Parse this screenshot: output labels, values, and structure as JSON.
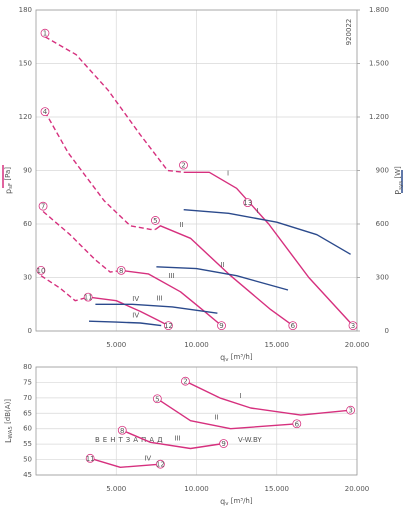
{
  "chart_data": [
    {
      "type": "line",
      "code": "920022",
      "xlabel": {
        "symbol": "q",
        "sub": "v",
        "unit": " [m³/h]"
      },
      "ylabel": {
        "symbol": "p",
        "sub": "sF",
        "unit": " [Pa]"
      },
      "y2label": {
        "symbol": "P",
        "sub": "sys",
        "unit": " [W]"
      },
      "xlim": [
        0,
        20000
      ],
      "xticks": [
        {
          "value": 5000,
          "label": "5.000"
        },
        {
          "value": 10000,
          "label": "10.000"
        },
        {
          "value": 15000,
          "label": "15.000"
        },
        {
          "value": 20000,
          "label": "20.000"
        }
      ],
      "ylim": [
        0,
        180
      ],
      "yticks": [
        0,
        30,
        60,
        90,
        120,
        150,
        180
      ],
      "y2lim": [
        0,
        1800
      ],
      "y2ticks": [
        0,
        300,
        600,
        900,
        {
          "value": 1200,
          "label": "1.200"
        },
        {
          "value": 1500,
          "label": "1.500"
        },
        {
          "value": 1800,
          "label": "1.800"
        }
      ],
      "grid": true,
      "series": [
        {
          "name": "I",
          "color": "#d6307e",
          "segments": [
            {
              "style": "dashed",
              "x": [
                560,
                2500,
                4500,
                6500,
                8200,
                9200
              ],
              "values": [
                165,
                155,
                135,
                110,
                90,
                89
              ]
            },
            {
              "style": "solid",
              "x": [
                9200,
                10800,
                12500,
                14500,
                17000,
                19750
              ],
              "values": [
                89,
                89,
                80,
                60,
                30,
                3
              ]
            }
          ]
        },
        {
          "name": "II",
          "color": "#d6307e",
          "segments": [
            {
              "style": "dashed",
              "x": [
                560,
                2000,
                4250,
                5875,
                7125,
                7440
              ],
              "values": [
                123,
                100,
                73,
                59,
                57,
                57
              ]
            },
            {
              "style": "solid",
              "x": [
                7440,
                7750,
                9625,
                12125,
                14625,
                16000
              ],
              "values": [
                57,
                59,
                52,
                31,
                12,
                3
              ]
            }
          ]
        },
        {
          "name": "III",
          "color": "#d6307e",
          "segments": [
            {
              "style": "dashed",
              "x": [
                440,
                2125,
                3690,
                4625,
                5310
              ],
              "values": [
                67,
                54,
                40,
                33,
                34
              ]
            },
            {
              "style": "solid",
              "x": [
                5310,
                7000,
                9000,
                10500,
                11560
              ],
              "values": [
                34,
                32,
                22,
                11,
                3
              ]
            }
          ]
        },
        {
          "name": "IV",
          "color": "#d6307e",
          "segments": [
            {
              "style": "dashed",
              "x": [
                310,
                1500,
                2440,
                3250
              ],
              "values": [
                31,
                24,
                17,
                19
              ]
            },
            {
              "style": "solid",
              "x": [
                3250,
                5000,
                6500,
                7600,
                8250
              ],
              "values": [
                19,
                17,
                11,
                6,
                3
              ]
            }
          ]
        },
        {
          "name": "I",
          "color": "#2b4a8c",
          "axis": "y2",
          "segments": [
            {
              "style": "solid",
              "x": [
                9200,
                12000,
                15000,
                17500,
                19600
              ],
              "values": [
                680,
                660,
                610,
                540,
                430
              ]
            }
          ]
        },
        {
          "name": "II",
          "color": "#2b4a8c",
          "axis": "y2",
          "segments": [
            {
              "style": "solid",
              "x": [
                7500,
                10000,
                12500,
                15700
              ],
              "values": [
                360,
                350,
                310,
                230
              ]
            }
          ]
        },
        {
          "name": "III",
          "color": "#2b4a8c",
          "axis": "y2",
          "segments": [
            {
              "style": "solid",
              "x": [
                3700,
                6000,
                8500,
                11300
              ],
              "values": [
                150,
                150,
                135,
                100
              ]
            }
          ]
        },
        {
          "name": "IV",
          "color": "#2b4a8c",
          "axis": "y2",
          "segments": [
            {
              "style": "solid",
              "x": [
                3300,
                5000,
                6500,
                7800
              ],
              "values": [
                55,
                50,
                45,
                30
              ]
            }
          ]
        }
      ],
      "points": [
        {
          "label": "1",
          "x": 560,
          "y": 167
        },
        {
          "label": "2",
          "x": 9190,
          "y": 93
        },
        {
          "label": "3",
          "x": 19750,
          "y": 3
        },
        {
          "label": "4",
          "x": 560,
          "y": 123
        },
        {
          "label": "5",
          "x": 7440,
          "y": 62
        },
        {
          "label": "6",
          "x": 16000,
          "y": 3
        },
        {
          "label": "7",
          "x": 440,
          "y": 70
        },
        {
          "label": "8",
          "x": 5310,
          "y": 34
        },
        {
          "label": "9",
          "x": 11560,
          "y": 3
        },
        {
          "label": "10",
          "x": 310,
          "y": 34
        },
        {
          "label": "11",
          "x": 3250,
          "y": 19
        },
        {
          "label": "12",
          "x": 8250,
          "y": 3
        },
        {
          "label": "13",
          "x": 13190,
          "y": 72
        }
      ]
    },
    {
      "type": "line",
      "xlabel": {
        "symbol": "q",
        "sub": "v",
        "unit": " [m³/h]"
      },
      "ylabel": {
        "symbol": "L",
        "sub": "WA5",
        "unit": " [dB(A)]"
      },
      "watermark": [
        "ВЕНТЗАПАД",
        "V-W.BY"
      ],
      "xlim": [
        0,
        20000
      ],
      "xticks": [
        {
          "value": 5000,
          "label": "5.000"
        },
        {
          "value": 10000,
          "label": "10.000"
        },
        {
          "value": 15000,
          "label": "15.000"
        },
        {
          "value": 20000,
          "label": "20.000"
        }
      ],
      "ylim": [
        45,
        80
      ],
      "yticks": [
        45,
        50,
        55,
        60,
        65,
        70,
        75,
        80
      ],
      "grid": true,
      "series": [
        {
          "name": "I",
          "color": "#d6307e",
          "segments": [
            {
              "style": "solid",
              "x": [
                9310,
                11500,
                13375,
                16500,
                19600
              ],
              "values": [
                75.4,
                69.9,
                66.7,
                64.4,
                66
              ]
            }
          ]
        },
        {
          "name": "II",
          "color": "#d6307e",
          "segments": [
            {
              "style": "solid",
              "x": [
                7560,
                9625,
                12125,
                16250
              ],
              "values": [
                69.7,
                62.6,
                60,
                61.6
              ]
            }
          ]
        },
        {
          "name": "III",
          "color": "#d6307e",
          "segments": [
            {
              "style": "solid",
              "x": [
                5375,
                7125,
                9625,
                11690
              ],
              "values": [
                59.5,
                55.6,
                53.6,
                55.2
              ]
            }
          ]
        },
        {
          "name": "IV",
          "color": "#d6307e",
          "segments": [
            {
              "style": "solid",
              "x": [
                3375,
                5250,
                7750
              ],
              "values": [
                50.4,
                47.5,
                48.5
              ]
            }
          ]
        }
      ],
      "points": [
        {
          "label": "2",
          "x": 9310,
          "y": 75.4
        },
        {
          "label": "3",
          "x": 19600,
          "y": 66
        },
        {
          "label": "5",
          "x": 7560,
          "y": 69.7
        },
        {
          "label": "6",
          "x": 16250,
          "y": 61.6
        },
        {
          "label": "8",
          "x": 5375,
          "y": 59.5
        },
        {
          "label": "9",
          "x": 11690,
          "y": 55.2
        },
        {
          "label": "11",
          "x": 3375,
          "y": 50.4
        },
        {
          "label": "12",
          "x": 7750,
          "y": 48.5
        }
      ]
    }
  ]
}
